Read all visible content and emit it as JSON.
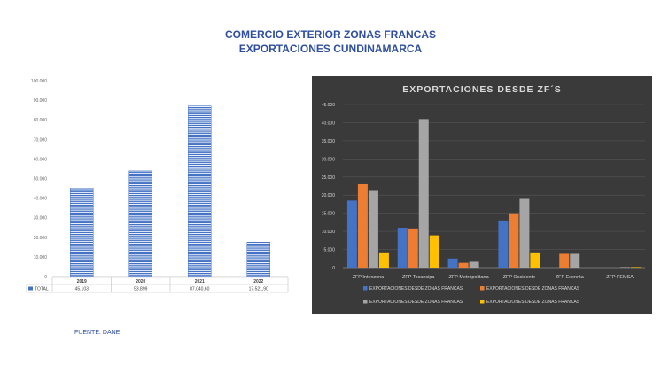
{
  "header": {
    "title_line1": "COMERCIO EXTERIOR ZONAS FRANCAS",
    "title_line2": "EXPORTACIONES CUNDINAMARCA"
  },
  "source_note": "FUENTE: DANE",
  "chart_data": [
    {
      "type": "bar",
      "categories": [
        "2019",
        "2020",
        "2021",
        "2022"
      ],
      "series": [
        {
          "name": "TOTAL",
          "values": [
            45103,
            53899,
            87040.6,
            17521.9
          ],
          "color": "#4472c4"
        }
      ],
      "value_labels": [
        "45.103",
        "53.899",
        "87.040,60",
        "17.521,90"
      ],
      "y_ticks": [
        "0",
        "10.000",
        "20.000",
        "30.000",
        "40.000",
        "50.000",
        "60.000",
        "70.000",
        "80.000",
        "90.000",
        "100.000"
      ],
      "ylim": [
        0,
        100000
      ],
      "legend": "data-table"
    },
    {
      "type": "bar",
      "title": "EXPORTACIONES DESDE ZF´S",
      "categories": [
        "ZFP Intexzona",
        "ZFP Tocancipa",
        "ZFP Metropolitana",
        "ZFP Occidente",
        "ZFP Exennta",
        "ZFP FEMSA"
      ],
      "series": [
        {
          "name": "EXPORTACIONES DESDE ZONAS FRANCAS",
          "values": [
            18500,
            11000,
            2500,
            13000,
            0,
            0
          ],
          "color": "#4472c4"
        },
        {
          "name": "EXPORTACIONES DESDE ZONAS FRANCAS",
          "values": [
            23000,
            10800,
            1300,
            15000,
            3800,
            0
          ],
          "color": "#ed7d31"
        },
        {
          "name": "EXPORTACIONES DESDE ZONAS FRANCAS",
          "values": [
            21400,
            41000,
            1600,
            19200,
            3800,
            150
          ],
          "color": "#a5a5a5"
        },
        {
          "name": "EXPORTACIONES DESDE ZONAS FRANCAS",
          "values": [
            4200,
            8900,
            0,
            4200,
            0,
            150
          ],
          "color": "#ffc000"
        }
      ],
      "y_ticks": [
        "0",
        "5.000",
        "10.000",
        "15.000",
        "20.000",
        "25.000",
        "30.000",
        "35.000",
        "40.000",
        "45.000"
      ],
      "ylim": [
        0,
        45000
      ],
      "legend": "bottom",
      "background": "#3a3a3a"
    }
  ]
}
